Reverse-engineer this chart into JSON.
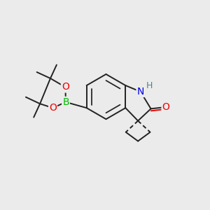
{
  "background_color": "#ebebeb",
  "atom_colors": {
    "B": "#00bb00",
    "N": "#0000ee",
    "O": "#ee0000",
    "H": "#448888",
    "C": "#000000"
  },
  "bond_color": "#222222",
  "bond_width": 1.4,
  "figsize": [
    3.0,
    3.0
  ],
  "dpi": 100
}
